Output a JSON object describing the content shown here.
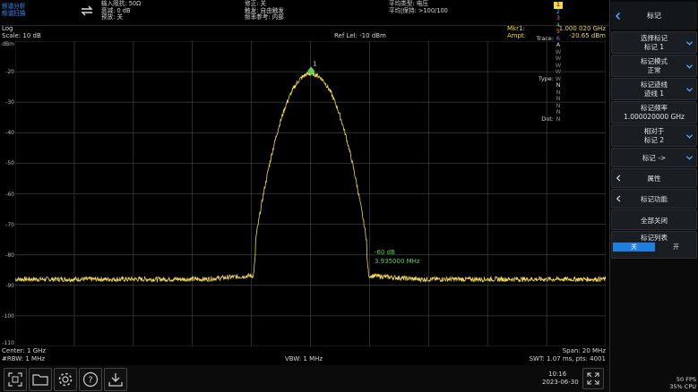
{
  "header": {
    "mode_line1": "频谱分析",
    "mode_line2": "频谱扫描",
    "input_impedance": "输入阻抗: 50Ω",
    "atten": "衰减: 0 dB",
    "preamp": "预放: 关",
    "correction": "修正: 关",
    "trigger": "触发: 自由触发",
    "freq_ref": "频率参考: 内部",
    "avg_type": "平均类型: 电压",
    "avg_hold": "平均|保持: >100/100",
    "trace_label": "Trace:",
    "type_label": "Type:",
    "det_label": "Det:",
    "trace_nums": [
      "1",
      "2",
      "3",
      "4",
      "5",
      "6"
    ],
    "trace_types": [
      "A",
      "W",
      "W",
      "W",
      "W",
      "W"
    ],
    "trace_dets": [
      "N",
      "N",
      "N",
      "N",
      "N",
      "N"
    ],
    "trace_colors": [
      "#f2d64b",
      "#3fbfff",
      "#ff5fd2",
      "#39d98a",
      "#ff8c3a",
      "#8a7bff"
    ]
  },
  "infobar": {
    "scale_type": "Log",
    "scale": "Scale: 10 dB",
    "ref_level": "Ref Lel: -10 dBm",
    "mkr_label": "Mkr1:",
    "mkr_freq": "1.000 020 GHz",
    "ampt_label": "Ampt:",
    "mkr_ampt": "-20.65 dBm"
  },
  "plot": {
    "y_labels": [
      "dBm",
      "-20",
      "-30",
      "-40",
      "-50",
      "-60",
      "-70",
      "-80",
      "-90",
      "-100",
      "-110"
    ],
    "marker_label": "1",
    "annot_level": "-60 dB",
    "annot_bw": "3.935000 MHz",
    "trace_color": "#f0d85a",
    "grid_color": "#3a3a3a"
  },
  "chart_data": {
    "type": "line",
    "xlabel": "",
    "ylabel": "",
    "x_range_mhz": [
      990,
      1010
    ],
    "ylim": [
      -110,
      -10
    ],
    "peak": {
      "x_mhz": 1000.02,
      "y_dbm": -20.65
    },
    "noise_floor_dbm": -88,
    "bandwidth_mhz": 3.935,
    "bandwidth_level_db": -60,
    "grid": true
  },
  "footer": {
    "center": "Center: 1 GHz",
    "rbw": "#RBW: 1 MHz",
    "vbw": "VBW: 1 MHz",
    "span": "Span: 20 MHz",
    "swt": "SWT: 1.07 ms, pts: 4001"
  },
  "toolbar": {
    "time": "10:16",
    "date": "2023-06-30"
  },
  "side": {
    "title": "标记",
    "select_marker": "选择标记",
    "select_marker_val": "标记 1",
    "marker_mode": "标记模式",
    "marker_mode_val": "正常",
    "marker_trace": "标记迹线",
    "marker_trace_val": "迹线 1",
    "marker_freq": "标记频率",
    "marker_freq_val": "1.000020000 GHz",
    "relative_to": "相对于",
    "relative_to_val": "标记 2",
    "marker_to": "标记 ->",
    "properties": "属性",
    "marker_func": "标记功能",
    "all_off": "全部关闭",
    "marker_list": "标记列表",
    "off": "关",
    "on": "开",
    "fps": "50 FPS",
    "cpu": "35% CPU"
  }
}
